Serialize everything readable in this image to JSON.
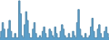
{
  "chart_data": {
    "type": "area",
    "line_style": "steps-mid",
    "color": "#5b9ec9",
    "tick_labels": false,
    "values": [
      1,
      4,
      8,
      5,
      1,
      1,
      5,
      9,
      4,
      1,
      1,
      3,
      1,
      1,
      18,
      12,
      2,
      1,
      7,
      13,
      9,
      3,
      1,
      1,
      5,
      8,
      3,
      1,
      1,
      2,
      1,
      4,
      6,
      3,
      1,
      1,
      5,
      4,
      2,
      1,
      6,
      3,
      1,
      1,
      4,
      7,
      5,
      2,
      1,
      1,
      3,
      1,
      1,
      4,
      2,
      1,
      8,
      14,
      5,
      2,
      1,
      1,
      3,
      1,
      1,
      2,
      6,
      10,
      4,
      1,
      1,
      5,
      7,
      3,
      1,
      1,
      4,
      6,
      3,
      1
    ],
    "xlim": [
      0,
      79
    ],
    "ylim": [
      0,
      18.36
    ]
  }
}
